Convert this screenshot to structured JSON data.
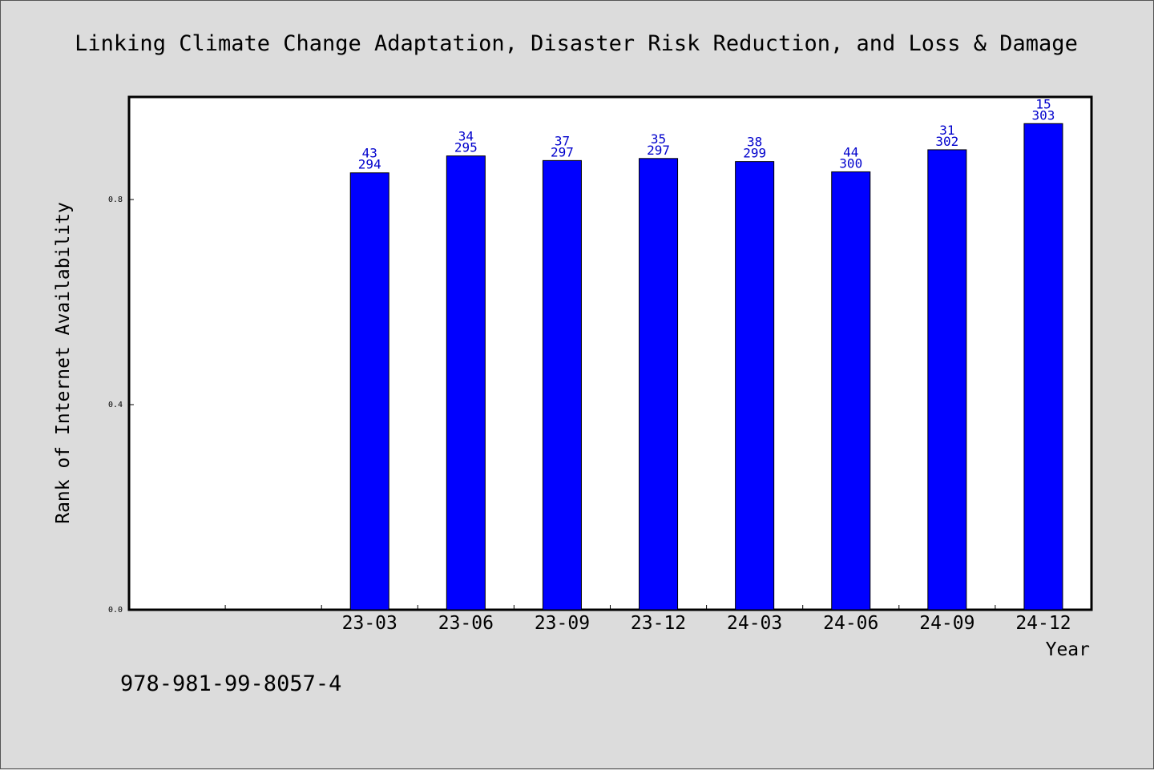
{
  "chart_data": {
    "type": "bar",
    "title": "Linking Climate Change Adaptation, Disaster Risk Reduction, and Loss & Damage",
    "xlabel": "Year",
    "ylabel": "Rank of Internet Availability",
    "categories": [
      "",
      "",
      "23-03",
      "23-06",
      "23-09",
      "23-12",
      "24-03",
      "24-06",
      "24-09",
      "24-12"
    ],
    "series": [
      {
        "values": [
          null,
          null,
          0.852,
          0.885,
          0.876,
          0.88,
          0.874,
          0.854,
          0.897,
          0.948
        ],
        "label_top": [
          "",
          "",
          "43",
          "34",
          "37",
          "35",
          "38",
          "44",
          "31",
          "15"
        ],
        "label_bottom": [
          "",
          "",
          "294",
          "295",
          "297",
          "297",
          "299",
          "300",
          "302",
          "303"
        ],
        "color": "#0000ff"
      }
    ],
    "ylim": [
      0.0,
      1.0
    ],
    "yticks": [
      0.0,
      0.4,
      0.8
    ],
    "ytick_labels": [
      "0.0",
      "0.4",
      "0.8"
    ],
    "grid": false,
    "legend": "none",
    "background": "#dcdcdc",
    "plot_background": "#ffffff"
  },
  "footer": {
    "isbn": "978-981-99-8057-4"
  }
}
